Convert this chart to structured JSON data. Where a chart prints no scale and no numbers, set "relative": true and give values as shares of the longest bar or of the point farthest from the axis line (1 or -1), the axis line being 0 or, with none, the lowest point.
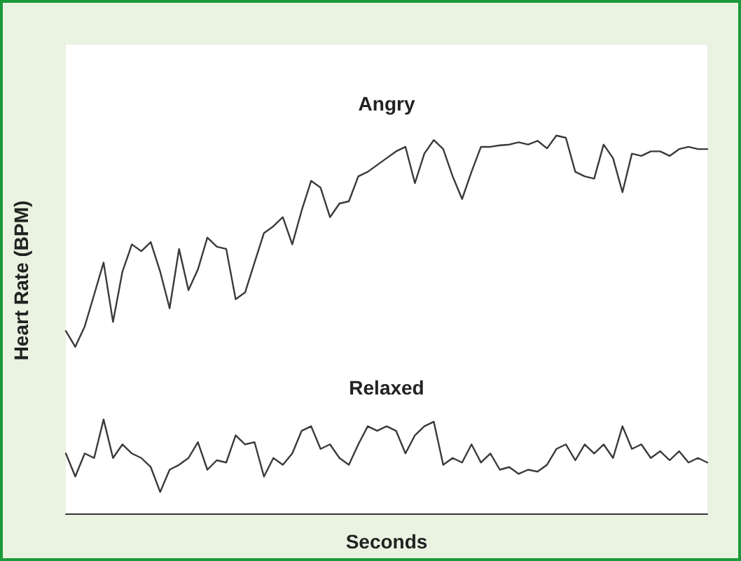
{
  "chart_data": {
    "type": "line",
    "xlabel": "Seconds",
    "ylabel": "Heart Rate (BPM)",
    "relative": true,
    "grid": false,
    "legend": false,
    "marker": "none",
    "line_style": "solid",
    "categories": [
      null,
      null,
      null,
      null,
      null,
      null,
      null,
      null,
      null,
      null,
      null,
      null,
      null,
      null,
      null,
      null,
      null,
      null,
      null,
      null,
      null,
      null,
      null,
      null,
      null,
      null,
      null,
      null,
      null,
      null,
      null,
      null,
      null,
      null,
      null,
      null,
      null,
      null,
      null,
      null,
      null,
      null,
      null,
      null,
      null,
      null,
      null,
      null,
      null,
      null,
      null,
      null,
      null,
      null,
      null,
      null,
      null,
      null,
      null,
      null,
      null,
      null,
      null,
      null,
      null,
      null,
      null,
      null,
      null
    ],
    "series": [
      {
        "name": "Angry",
        "color": "#3a3a3a",
        "values": [
          0.483,
          0.441,
          0.495,
          0.579,
          0.664,
          0.507,
          0.64,
          0.712,
          0.694,
          0.718,
          0.64,
          0.543,
          0.7,
          0.591,
          0.646,
          0.73,
          0.706,
          0.7,
          0.567,
          0.585,
          0.664,
          0.742,
          0.76,
          0.784,
          0.712,
          0.802,
          0.88,
          0.862,
          0.784,
          0.82,
          0.826,
          0.892,
          0.904,
          0.922,
          0.94,
          0.958,
          0.97,
          0.874,
          0.952,
          0.988,
          0.964,
          0.892,
          0.832,
          0.904,
          0.97,
          0.97,
          0.974,
          0.976,
          0.982,
          0.976,
          0.986,
          0.966,
          1,
          0.994,
          0.904,
          0.892,
          0.886,
          0.976,
          0.94,
          0.85,
          0.952,
          0.946,
          0.958,
          0.958,
          0.946,
          0.964,
          0.97,
          0.964,
          0.964
        ]
      },
      {
        "name": "Relaxed",
        "color": "#3a3a3a",
        "values": [
          0.159,
          0.098,
          0.159,
          0.147,
          0.249,
          0.147,
          0.183,
          0.159,
          0.147,
          0.123,
          0.057,
          0.116,
          0.129,
          0.147,
          0.189,
          0.116,
          0.141,
          0.135,
          0.207,
          0.183,
          0.189,
          0.098,
          0.147,
          0.129,
          0.159,
          0.219,
          0.231,
          0.171,
          0.183,
          0.147,
          0.129,
          0.183,
          0.231,
          0.219,
          0.231,
          0.219,
          0.159,
          0.207,
          0.231,
          0.243,
          0.129,
          0.147,
          0.135,
          0.183,
          0.135,
          0.159,
          0.116,
          0.123,
          0.105,
          0.116,
          0.111,
          0.129,
          0.171,
          0.183,
          0.141,
          0.183,
          0.159,
          0.183,
          0.147,
          0.231,
          0.171,
          0.183,
          0.147,
          0.165,
          0.141,
          0.165,
          0.135,
          0.147,
          0.135
        ]
      }
    ]
  }
}
